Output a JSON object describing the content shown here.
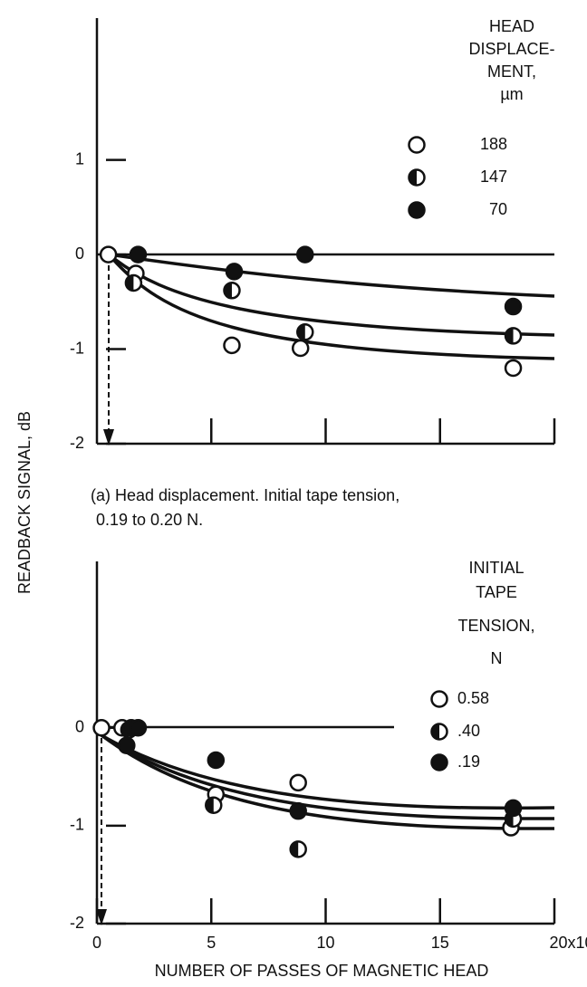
{
  "chart_data": [
    {
      "type": "scatter",
      "ylabel": "READBACK SIGNAL, dB",
      "caption": [
        "(a) Head displacement. Initial tape tension,",
        "0.19 to 0.20 N."
      ],
      "legend_title": [
        "HEAD",
        "DISPLACE-",
        "MENT,",
        "µm"
      ],
      "xlim": [
        0,
        20
      ],
      "ylim": [
        -2,
        2.5
      ],
      "xticks": [
        5,
        10,
        15,
        20
      ],
      "yticks": [
        -2,
        -1,
        0,
        1
      ],
      "series": [
        {
          "name": "188",
          "marker": "open",
          "x": [
            0.5,
            1.7,
            5.9,
            8.9,
            18.2
          ],
          "values": [
            0,
            -0.2,
            -0.96,
            -0.99,
            -1.2
          ]
        },
        {
          "name": "147",
          "marker": "half",
          "x": [
            1.6,
            5.9,
            9.1,
            18.2
          ],
          "values": [
            -0.3,
            -0.38,
            -0.82,
            -0.86
          ]
        },
        {
          "name": "70",
          "marker": "filled",
          "x": [
            1.8,
            6.0,
            9.1,
            18.2
          ],
          "values": [
            0,
            -0.18,
            0,
            -0.55
          ]
        }
      ]
    },
    {
      "type": "scatter",
      "xlabel": "NUMBER OF PASSES OF MAGNETIC HEAD",
      "legend_title": [
        "INITIAL",
        "TAPE",
        "TENSION,",
        "N"
      ],
      "xlim": [
        0,
        20
      ],
      "ylim": [
        -2,
        1.7
      ],
      "xticks": [
        0,
        5,
        10,
        15,
        {
          "value": 20,
          "label": "20x10³"
        }
      ],
      "yticks": [
        -2,
        -1,
        0
      ],
      "series": [
        {
          "name": "0.58",
          "marker": "open",
          "x": [
            0.2,
            1.1,
            5.2,
            8.8,
            18.1
          ],
          "values": [
            0,
            0,
            -0.68,
            -0.56,
            -1.02
          ]
        },
        {
          "name": ".40",
          "marker": "half",
          "x": [
            1.4,
            5.1,
            8.8,
            18.2
          ],
          "values": [
            -0.02,
            -0.79,
            -1.24,
            -0.93
          ]
        },
        {
          "name": ".19",
          "marker": "filled",
          "x": [
            1.3,
            1.5,
            1.8,
            5.2,
            8.8,
            18.2
          ],
          "values": [
            -0.18,
            0,
            0,
            -0.33,
            -0.85,
            -0.82
          ]
        }
      ]
    }
  ]
}
